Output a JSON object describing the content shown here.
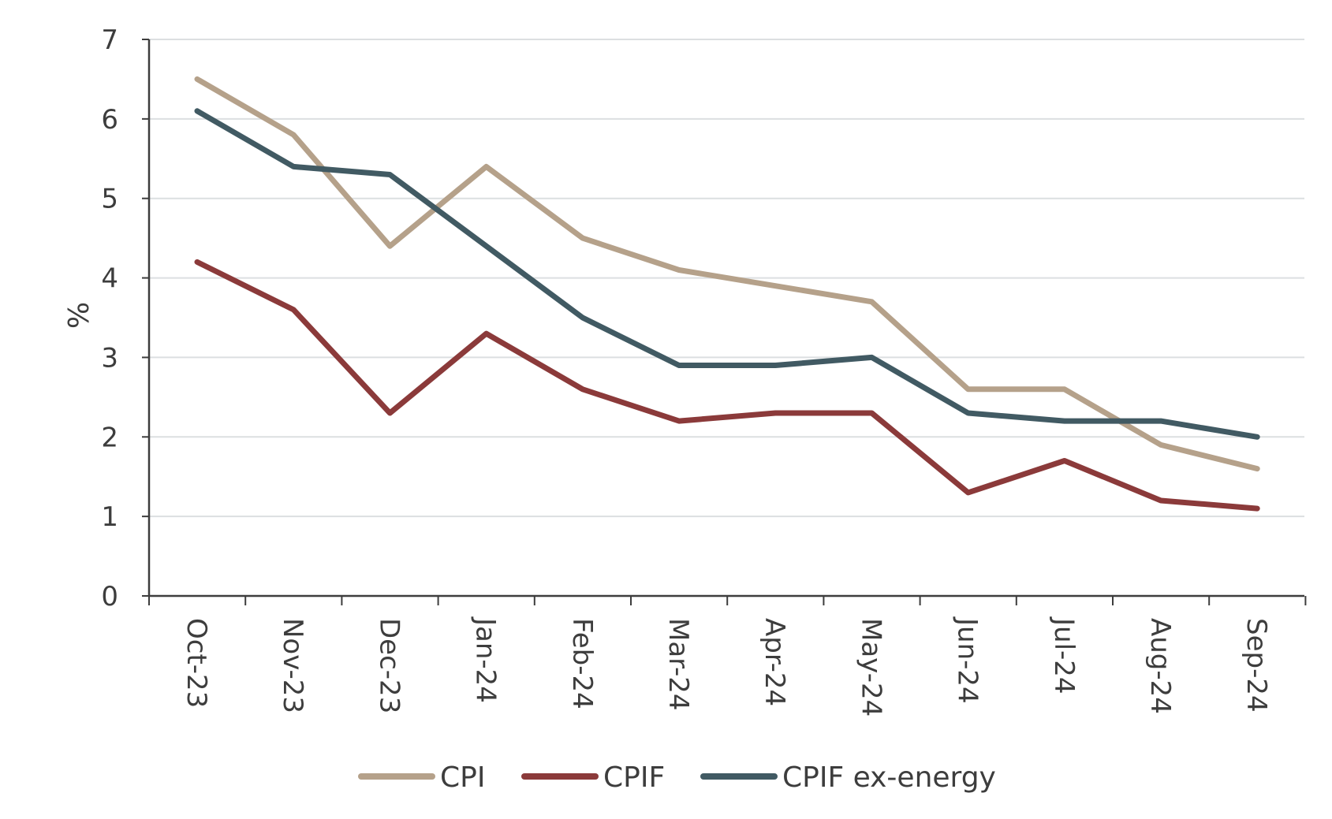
{
  "chart_data": {
    "type": "line",
    "title": "",
    "xlabel": "",
    "ylabel": "%",
    "ylim": [
      0,
      7
    ],
    "yticks": [
      0,
      1,
      2,
      3,
      4,
      5,
      6,
      7
    ],
    "categories": [
      "Oct-23",
      "Nov-23",
      "Dec-23",
      "Jan-24",
      "Feb-24",
      "Mar-24",
      "Apr-24",
      "May-24",
      "Jun-24",
      "Jul-24",
      "Aug-24",
      "Sep-24"
    ],
    "grid": true,
    "legend_position": "bottom",
    "series": [
      {
        "name": "CPI",
        "color": "#b5a18a",
        "values": [
          6.5,
          5.8,
          4.4,
          5.4,
          4.5,
          4.1,
          3.9,
          3.7,
          2.6,
          2.6,
          1.9,
          1.6
        ]
      },
      {
        "name": "CPIF",
        "color": "#8b3a3a",
        "values": [
          4.2,
          3.6,
          2.3,
          3.3,
          2.6,
          2.2,
          2.3,
          2.3,
          1.3,
          1.7,
          1.2,
          1.1
        ]
      },
      {
        "name": "CPIF ex-energy",
        "color": "#415a63",
        "values": [
          6.1,
          5.4,
          5.3,
          4.4,
          3.5,
          2.9,
          2.9,
          3.0,
          2.3,
          2.2,
          2.2,
          2.0
        ]
      }
    ]
  }
}
